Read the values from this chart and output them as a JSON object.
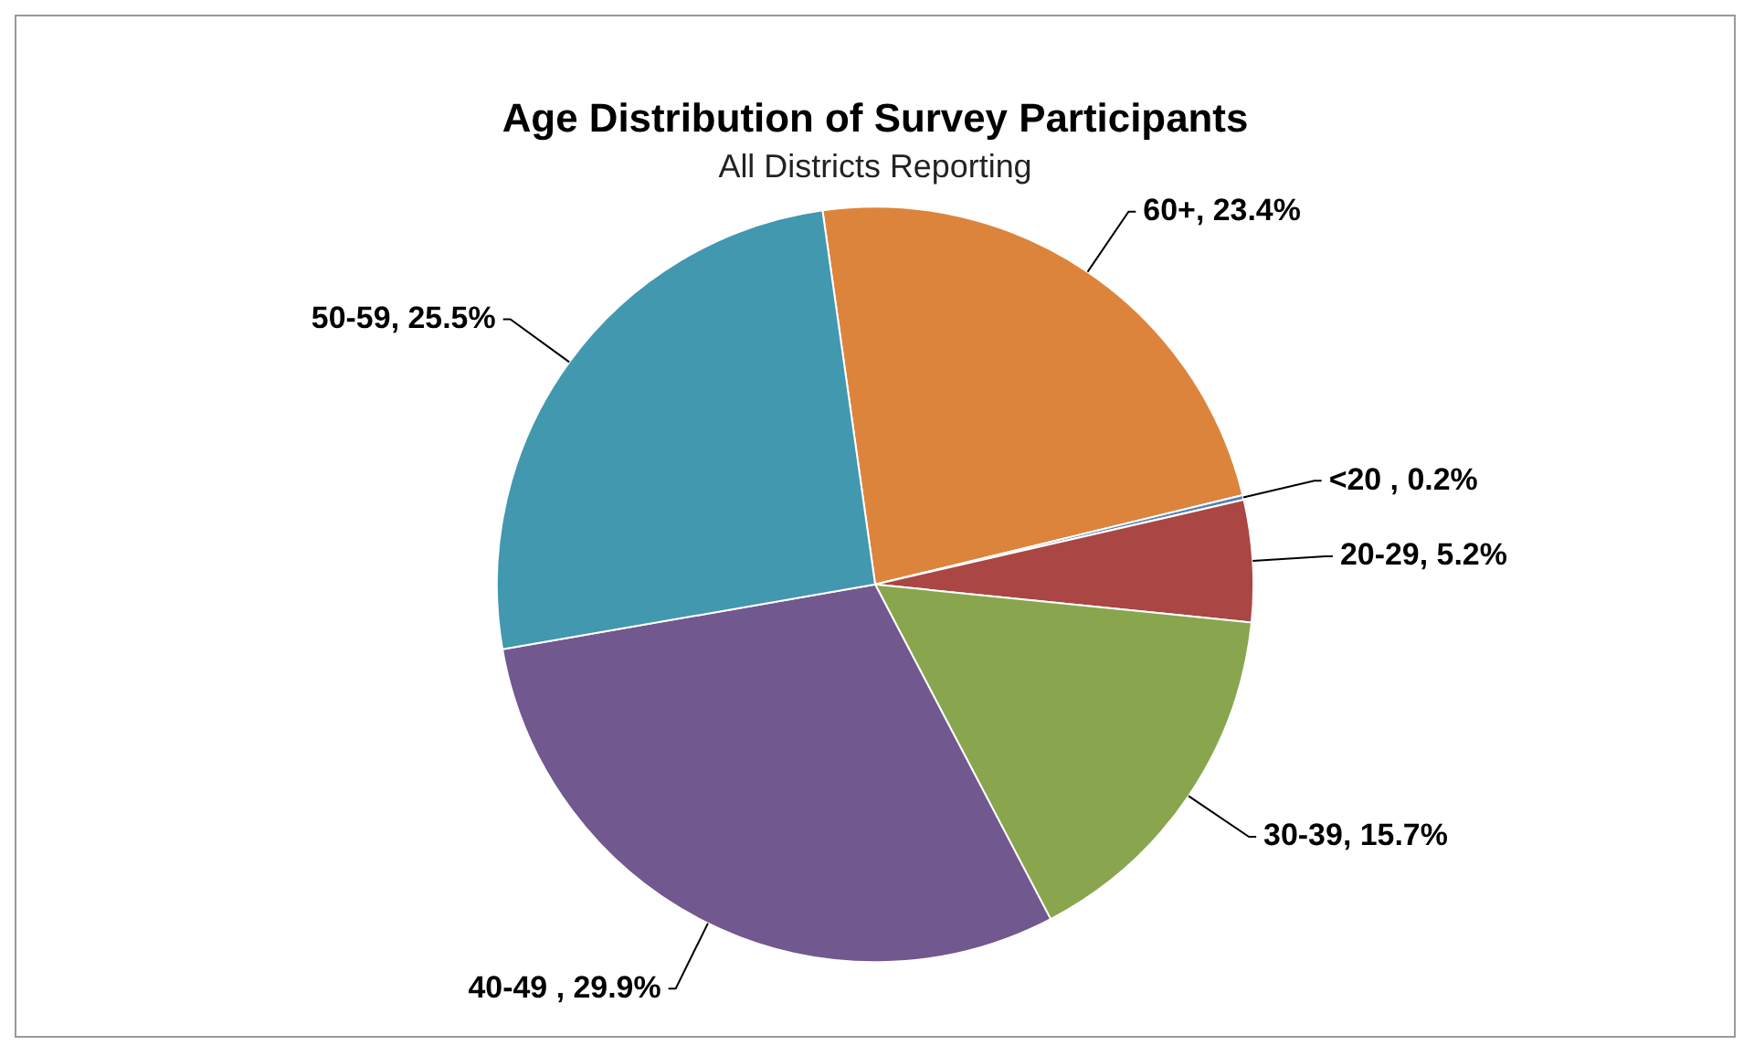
{
  "chart_data": {
    "type": "pie",
    "title": "Age Distribution of Survey Participants",
    "subtitle": "All Districts Reporting",
    "categories": [
      "60+",
      "<20 ",
      "20-29",
      "30-39",
      "40-49 ",
      "50-59"
    ],
    "values": [
      23.4,
      0.2,
      5.2,
      15.7,
      29.9,
      25.5
    ],
    "colors": [
      "#dd843c",
      "#4f81bd",
      "#aa4643",
      "#89a54e",
      "#71588f",
      "#4198af"
    ],
    "value_labels": [
      ", 23.4%",
      ", 0.2%",
      ", 5.2%",
      ", 15.7%",
      ", 29.9%",
      ", 25.5%"
    ],
    "legend": false
  }
}
